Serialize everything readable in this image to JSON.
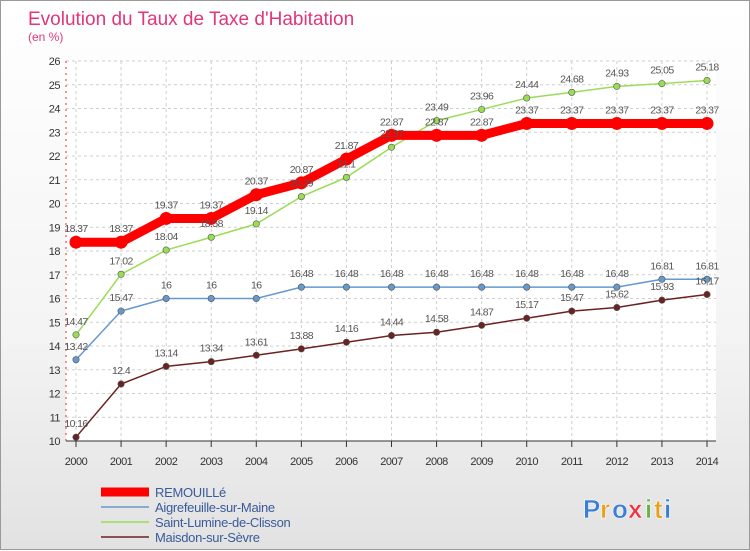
{
  "chart_data": {
    "type": "line",
    "title": "Evolution du Taux de Taxe d'Habitation",
    "subtitle": "(en %)",
    "categories": [
      "2000",
      "2001",
      "2002",
      "2003",
      "2004",
      "2005",
      "2006",
      "2007",
      "2008",
      "2009",
      "2010",
      "2011",
      "2012",
      "2013",
      "2014"
    ],
    "ylim": [
      10,
      26
    ],
    "yticks": [
      10,
      11,
      12,
      13,
      14,
      15,
      16,
      17,
      18,
      19,
      20,
      21,
      22,
      23,
      24,
      25,
      26
    ],
    "grid": true,
    "legend_position": "bottom-left",
    "series": [
      {
        "name": "REMOUILLé",
        "color": "#ff0000",
        "values": [
          18.37,
          18.37,
          19.37,
          19.37,
          20.37,
          20.87,
          21.87,
          22.87,
          22.87,
          22.87,
          23.37,
          23.37,
          23.37,
          23.37,
          23.37
        ],
        "labels": [
          "18.37",
          "18.37",
          "19.37",
          "19.37",
          "20.37",
          "20.87",
          "21.87",
          "22.87",
          "22.87",
          "22.87",
          "23.37",
          "23.37",
          "23.37",
          "23.37",
          "23.37"
        ]
      },
      {
        "name": "Aigrefeuille-sur-Maine",
        "color": "#6699cc",
        "values": [
          13.42,
          15.47,
          16,
          16,
          16,
          16.48,
          16.48,
          16.48,
          16.48,
          16.48,
          16.48,
          16.48,
          16.48,
          16.81,
          16.81
        ],
        "labels": [
          "13.42",
          "15.47",
          "16",
          "16",
          "16",
          "16.48",
          "16.48",
          "16.48",
          "16.48",
          "16.48",
          "16.48",
          "16.48",
          "16.48",
          "16.81",
          "16.81"
        ]
      },
      {
        "name": "Saint-Lumine-de-Clisson",
        "color": "#99dd55",
        "values": [
          14.47,
          17.02,
          18.04,
          18.58,
          19.14,
          20.29,
          21.1,
          22.37,
          23.49,
          23.96,
          24.44,
          24.68,
          24.93,
          25.05,
          25.18
        ],
        "labels": [
          "14.47",
          "17.02",
          "18.04",
          "18.58",
          "19.14",
          "20.29",
          "21.1",
          "22.37",
          "23.49",
          "23.96",
          "24.44",
          "24.68",
          "24.93",
          "25.05",
          "25.18"
        ]
      },
      {
        "name": "Maisdon-sur-Sèvre",
        "color": "#6b2222",
        "values": [
          10.16,
          12.4,
          13.14,
          13.34,
          13.61,
          13.88,
          14.16,
          14.44,
          14.58,
          14.87,
          15.17,
          15.47,
          15.62,
          15.93,
          16.17
        ],
        "labels": [
          "10.16",
          "12.4",
          "13.14",
          "13.34",
          "13.61",
          "13.88",
          "14.16",
          "14.44",
          "14.58",
          "14.87",
          "15.17",
          "15.47",
          "15.62",
          "15.93",
          "16.17"
        ]
      }
    ]
  },
  "branding": {
    "logo_letters": [
      "P",
      "r",
      "o",
      "x",
      "i",
      "t",
      "i"
    ],
    "logo_colors": [
      "#3a7fd5",
      "#e8a020",
      "#3a7fd5",
      "#ee3344",
      "#6ab04c",
      "#e8a020",
      "#3a7fd5"
    ]
  }
}
